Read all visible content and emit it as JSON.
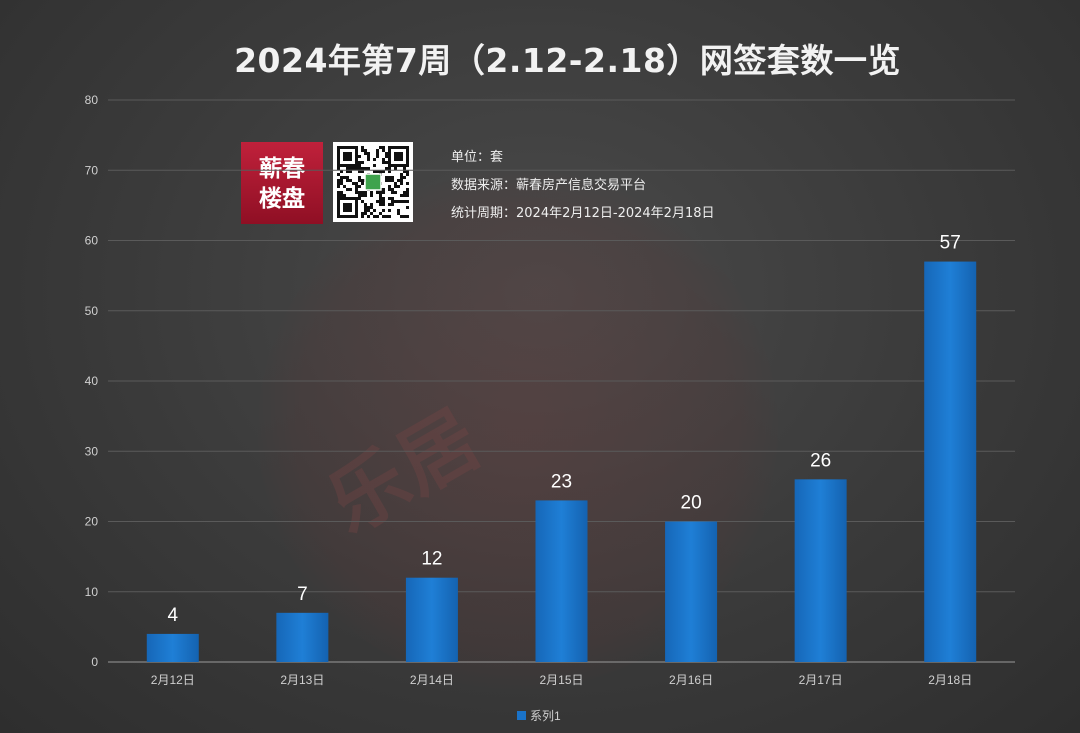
{
  "chart_data": {
    "type": "bar",
    "title": "2024年第7周（2.12-2.18）网签套数一览",
    "categories": [
      "2月12日",
      "2月13日",
      "2月14日",
      "2月15日",
      "2月16日",
      "2月17日",
      "2月18日"
    ],
    "series": [
      {
        "name": "系列1",
        "values": [
          4,
          7,
          12,
          23,
          20,
          26,
          57
        ]
      }
    ],
    "ylim": [
      0,
      80
    ],
    "yticks": [
      0,
      10,
      20,
      30,
      40,
      50,
      60,
      70,
      80
    ],
    "grid": true,
    "legend": "bottom",
    "bar_color": "#1a73c9"
  },
  "info": {
    "unit": "单位：套",
    "source": "数据来源：蕲春房产信息交易平台",
    "period": "统计周期：2024年2月12日-2024年2月18日"
  },
  "logo": {
    "line1": "蕲春",
    "line2": "楼盘"
  },
  "icons": {
    "qr": "qr-code-icon",
    "legend": "legend-square-icon"
  }
}
